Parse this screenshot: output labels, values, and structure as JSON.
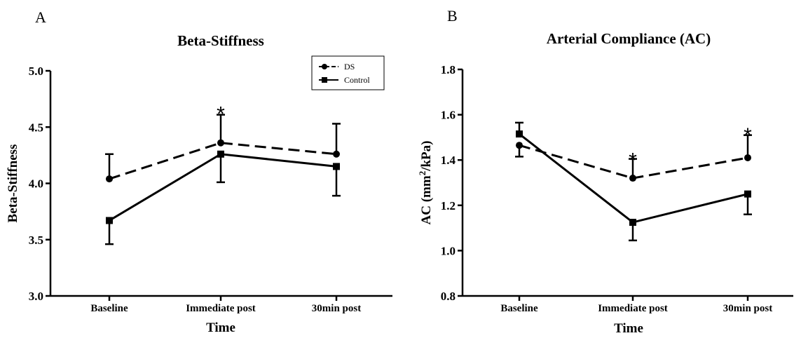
{
  "chart_data": [
    {
      "type": "line",
      "panel_letter": "A",
      "title": "Beta-Stiffness",
      "xlabel": "Time",
      "ylabel": "Beta-Stiffness",
      "ylabel_sup": "",
      "ylabel_suffix": "",
      "categories": [
        "Baseline",
        "Immediate post",
        "30min post"
      ],
      "ylim": [
        3.0,
        5.0
      ],
      "yticks": [
        3.0,
        3.5,
        4.0,
        4.5,
        5.0
      ],
      "ytick_labels": [
        "3.0",
        "3.5",
        "4.0",
        "4.5",
        "5.0"
      ],
      "legend_position": "top-right",
      "series": [
        {
          "name": "DS",
          "marker": "circle",
          "dash": "dashed",
          "values": [
            4.04,
            4.36,
            4.26
          ],
          "errors": [
            0.22,
            0.25,
            0.27
          ],
          "error_dir": "up"
        },
        {
          "name": "Control",
          "marker": "square",
          "dash": "solid",
          "values": [
            3.67,
            4.26,
            4.15
          ],
          "errors": [
            0.21,
            0.25,
            0.26
          ],
          "error_dir": "down"
        }
      ],
      "annotations": [
        {
          "text": "*",
          "category_index": 1,
          "y": 4.68
        }
      ]
    },
    {
      "type": "line",
      "panel_letter": "B",
      "title": "Arterial Compliance (AC)",
      "xlabel": "Time",
      "ylabel": "AC (mm",
      "ylabel_sup": "2",
      "ylabel_suffix": "/kPa)",
      "categories": [
        "Baseline",
        "Immediate post",
        "30min post"
      ],
      "ylim": [
        0.8,
        1.8
      ],
      "yticks": [
        0.8,
        1.0,
        1.2,
        1.4,
        1.6,
        1.8
      ],
      "ytick_labels": [
        "0.8",
        "1.0",
        "1.2",
        "1.4",
        "1.6",
        "1.8"
      ],
      "legend_position": "",
      "series": [
        {
          "name": "DS",
          "marker": "circle",
          "dash": "dashed",
          "values": [
            1.465,
            1.32,
            1.41
          ],
          "errors": [
            0.05,
            0.085,
            0.1
          ],
          "error_dir": "down-up"
        },
        {
          "name": "Control",
          "marker": "square",
          "dash": "solid",
          "values": [
            1.515,
            1.125,
            1.25
          ],
          "errors": [
            0.05,
            0.08,
            0.09
          ],
          "error_dir": "up-down"
        }
      ],
      "annotations": [
        {
          "text": "*",
          "category_index": 1,
          "y": 1.43
        },
        {
          "text": "*",
          "category_index": 2,
          "y": 1.54
        }
      ]
    }
  ]
}
